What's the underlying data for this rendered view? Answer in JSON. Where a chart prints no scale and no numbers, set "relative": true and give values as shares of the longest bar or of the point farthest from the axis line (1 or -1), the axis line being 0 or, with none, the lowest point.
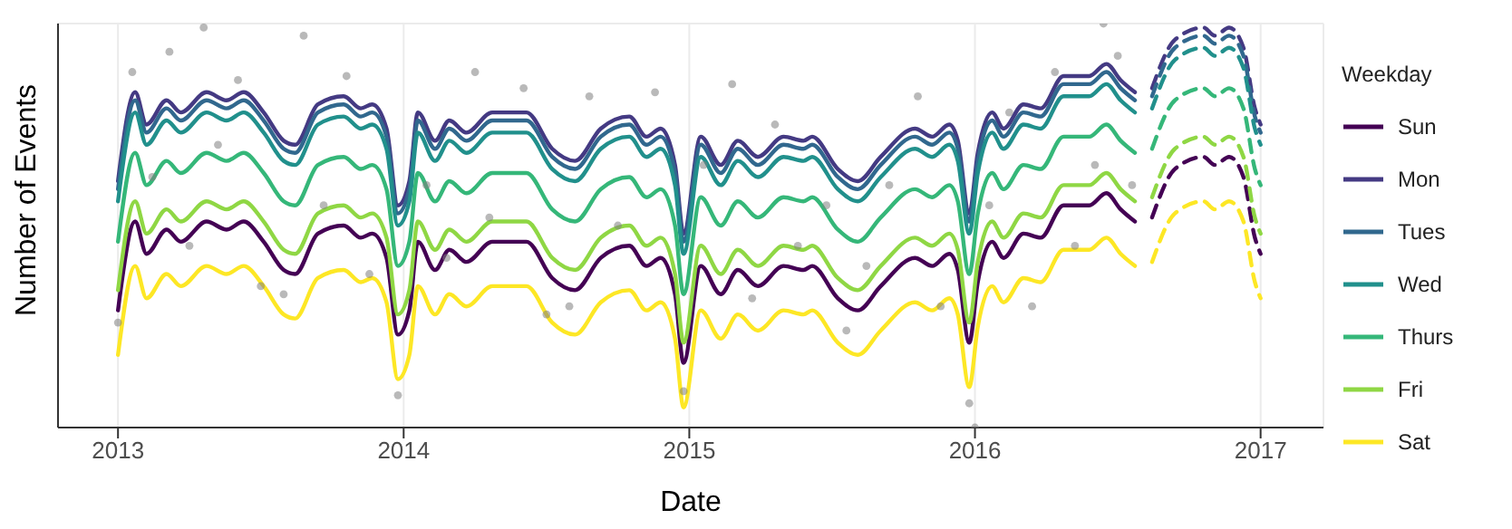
{
  "chart_data": {
    "type": "line",
    "xlabel": "Date",
    "ylabel": "Number of Events",
    "legend_title": "Weekday",
    "legend": "right",
    "grid": true,
    "relative": true,
    "xlim": [
      2012.79,
      2017.22
    ],
    "xticks": [
      2013,
      2014,
      2015,
      2016,
      2017
    ],
    "x": [
      2013.0,
      2013.06,
      2013.1,
      2013.17,
      2013.22,
      2013.31,
      2013.38,
      2013.44,
      2013.51,
      2013.58,
      2013.62,
      2013.7,
      2013.79,
      2013.85,
      2013.89,
      2013.94,
      2013.98,
      2014.02,
      2014.05,
      2014.11,
      2014.16,
      2014.22,
      2014.31,
      2014.37,
      2014.43,
      2014.52,
      2014.6,
      2014.69,
      2014.79,
      2014.85,
      2014.9,
      2014.95,
      2014.98,
      2015.04,
      2015.11,
      2015.17,
      2015.24,
      2015.33,
      2015.4,
      2015.43,
      2015.52,
      2015.59,
      2015.67,
      2015.79,
      2015.85,
      2015.91,
      2015.94,
      2015.98,
      2016.01,
      2016.06,
      2016.1,
      2016.17,
      2016.23,
      2016.31,
      2016.4,
      2016.46,
      2016.51,
      2016.56
    ],
    "series": [
      {
        "type": "scatter",
        "color": "#7f7f7f",
        "x": [
          2013.0,
          2013.05,
          2013.12,
          2013.18,
          2013.25,
          2013.3,
          2013.35,
          2013.42,
          2013.5,
          2013.58,
          2013.65,
          2013.72,
          2013.8,
          2013.88,
          2013.98,
          2014.08,
          2014.15,
          2014.25,
          2014.3,
          2014.42,
          2014.5,
          2014.58,
          2014.65,
          2014.75,
          2014.88,
          2014.98,
          2015.05,
          2015.15,
          2015.22,
          2015.3,
          2015.38,
          2015.48,
          2015.55,
          2015.62,
          2015.7,
          2015.8,
          2015.88,
          2015.98,
          2016.0,
          2016.05,
          2016.12,
          2016.2,
          2016.28,
          2016.35,
          2016.42,
          2016.45,
          2016.5,
          2016.55
        ],
        "values": [
          0.26,
          0.88,
          0.62,
          0.93,
          0.45,
          0.99,
          0.7,
          0.86,
          0.35,
          0.33,
          0.97,
          0.55,
          0.87,
          0.38,
          0.08,
          0.6,
          0.42,
          0.88,
          0.52,
          0.84,
          0.28,
          0.3,
          0.82,
          0.5,
          0.83,
          0.09,
          0.65,
          0.85,
          0.32,
          0.75,
          0.45,
          0.55,
          0.24,
          0.4,
          0.6,
          0.82,
          0.3,
          0.06,
          0.0,
          0.55,
          0.78,
          0.3,
          0.88,
          0.45,
          0.65,
          1.0,
          0.92,
          0.6
        ]
      },
      {
        "name": "Sun",
        "color": "#440154",
        "values": [
          0.29,
          0.51,
          0.43,
          0.49,
          0.46,
          0.51,
          0.49,
          0.51,
          0.46,
          0.39,
          0.38,
          0.48,
          0.5,
          0.47,
          0.48,
          0.42,
          0.23,
          0.29,
          0.46,
          0.39,
          0.44,
          0.41,
          0.46,
          0.46,
          0.46,
          0.37,
          0.34,
          0.42,
          0.45,
          0.4,
          0.42,
          0.33,
          0.16,
          0.4,
          0.33,
          0.39,
          0.35,
          0.4,
          0.39,
          0.4,
          0.32,
          0.29,
          0.35,
          0.42,
          0.4,
          0.43,
          0.39,
          0.21,
          0.36,
          0.46,
          0.42,
          0.48,
          0.47,
          0.55,
          0.55,
          0.58,
          0.54,
          0.51
        ]
      },
      {
        "name": "Mon",
        "color": "#443a83",
        "values": [
          0.61,
          0.83,
          0.75,
          0.81,
          0.78,
          0.83,
          0.81,
          0.83,
          0.78,
          0.71,
          0.7,
          0.8,
          0.82,
          0.79,
          0.8,
          0.74,
          0.55,
          0.61,
          0.78,
          0.71,
          0.76,
          0.73,
          0.78,
          0.78,
          0.78,
          0.69,
          0.66,
          0.74,
          0.77,
          0.72,
          0.74,
          0.65,
          0.48,
          0.72,
          0.65,
          0.71,
          0.67,
          0.72,
          0.71,
          0.72,
          0.64,
          0.61,
          0.67,
          0.74,
          0.72,
          0.75,
          0.71,
          0.53,
          0.68,
          0.78,
          0.74,
          0.8,
          0.79,
          0.87,
          0.87,
          0.9,
          0.86,
          0.83
        ]
      },
      {
        "name": "Tues",
        "color": "#31688e",
        "values": [
          0.59,
          0.81,
          0.73,
          0.79,
          0.76,
          0.81,
          0.79,
          0.81,
          0.76,
          0.69,
          0.68,
          0.78,
          0.8,
          0.77,
          0.78,
          0.72,
          0.53,
          0.59,
          0.76,
          0.69,
          0.74,
          0.71,
          0.76,
          0.76,
          0.76,
          0.67,
          0.64,
          0.72,
          0.75,
          0.7,
          0.72,
          0.63,
          0.46,
          0.7,
          0.63,
          0.69,
          0.65,
          0.7,
          0.69,
          0.7,
          0.62,
          0.59,
          0.65,
          0.72,
          0.7,
          0.73,
          0.69,
          0.51,
          0.66,
          0.76,
          0.72,
          0.78,
          0.77,
          0.85,
          0.85,
          0.88,
          0.84,
          0.81
        ]
      },
      {
        "name": "Wed",
        "color": "#21908c",
        "values": [
          0.56,
          0.78,
          0.7,
          0.76,
          0.73,
          0.78,
          0.76,
          0.78,
          0.73,
          0.66,
          0.65,
          0.75,
          0.77,
          0.74,
          0.75,
          0.69,
          0.5,
          0.56,
          0.73,
          0.66,
          0.71,
          0.68,
          0.73,
          0.73,
          0.73,
          0.64,
          0.61,
          0.69,
          0.72,
          0.67,
          0.69,
          0.6,
          0.43,
          0.67,
          0.6,
          0.66,
          0.62,
          0.67,
          0.66,
          0.67,
          0.59,
          0.56,
          0.62,
          0.69,
          0.67,
          0.7,
          0.66,
          0.48,
          0.63,
          0.73,
          0.69,
          0.75,
          0.74,
          0.82,
          0.82,
          0.85,
          0.81,
          0.78
        ]
      },
      {
        "name": "Thurs",
        "color": "#35b779",
        "values": [
          0.46,
          0.68,
          0.6,
          0.66,
          0.63,
          0.68,
          0.66,
          0.68,
          0.63,
          0.56,
          0.55,
          0.65,
          0.67,
          0.64,
          0.65,
          0.59,
          0.4,
          0.46,
          0.63,
          0.56,
          0.61,
          0.58,
          0.63,
          0.63,
          0.63,
          0.54,
          0.51,
          0.59,
          0.62,
          0.57,
          0.59,
          0.5,
          0.33,
          0.57,
          0.5,
          0.56,
          0.52,
          0.57,
          0.56,
          0.57,
          0.49,
          0.46,
          0.52,
          0.59,
          0.57,
          0.6,
          0.56,
          0.38,
          0.53,
          0.63,
          0.59,
          0.65,
          0.64,
          0.72,
          0.72,
          0.75,
          0.71,
          0.68
        ]
      },
      {
        "name": "Fri",
        "color": "#8fd744",
        "values": [
          0.34,
          0.56,
          0.48,
          0.54,
          0.51,
          0.56,
          0.54,
          0.56,
          0.51,
          0.44,
          0.43,
          0.53,
          0.55,
          0.52,
          0.53,
          0.47,
          0.28,
          0.34,
          0.51,
          0.44,
          0.49,
          0.46,
          0.51,
          0.51,
          0.51,
          0.42,
          0.39,
          0.47,
          0.5,
          0.45,
          0.47,
          0.38,
          0.21,
          0.45,
          0.38,
          0.44,
          0.4,
          0.45,
          0.44,
          0.45,
          0.37,
          0.34,
          0.4,
          0.47,
          0.45,
          0.48,
          0.44,
          0.26,
          0.41,
          0.51,
          0.47,
          0.53,
          0.52,
          0.6,
          0.6,
          0.63,
          0.59,
          0.56
        ]
      },
      {
        "name": "Sat",
        "color": "#fde725",
        "values": [
          0.18,
          0.4,
          0.32,
          0.38,
          0.35,
          0.4,
          0.38,
          0.4,
          0.35,
          0.28,
          0.27,
          0.37,
          0.39,
          0.36,
          0.37,
          0.31,
          0.12,
          0.18,
          0.35,
          0.28,
          0.33,
          0.3,
          0.35,
          0.35,
          0.35,
          0.26,
          0.23,
          0.31,
          0.34,
          0.29,
          0.31,
          0.22,
          0.05,
          0.29,
          0.22,
          0.28,
          0.24,
          0.29,
          0.28,
          0.29,
          0.21,
          0.18,
          0.24,
          0.31,
          0.29,
          0.32,
          0.28,
          0.1,
          0.25,
          0.35,
          0.31,
          0.37,
          0.36,
          0.44,
          0.44,
          0.47,
          0.43,
          0.4
        ]
      },
      {
        "color": "#440154",
        "line_style": "dashed",
        "x": [
          2016.62,
          2016.7,
          2016.8,
          2016.84,
          2016.89,
          2016.94,
          2016.98,
          2017.0
        ],
        "values": [
          0.52,
          0.64,
          0.67,
          0.65,
          0.67,
          0.62,
          0.47,
          0.43
        ]
      },
      {
        "color": "#443a83",
        "line_style": "dashed",
        "x": [
          2016.62,
          2016.7,
          2016.8,
          2016.84,
          2016.89,
          2016.94,
          2016.98,
          2017.0
        ],
        "values": [
          0.84,
          0.96,
          0.99,
          0.97,
          0.99,
          0.94,
          0.79,
          0.75
        ]
      },
      {
        "color": "#31688e",
        "line_style": "dashed",
        "x": [
          2016.62,
          2016.7,
          2016.8,
          2016.84,
          2016.89,
          2016.94,
          2016.98,
          2017.0
        ],
        "values": [
          0.82,
          0.94,
          0.97,
          0.95,
          0.97,
          0.92,
          0.77,
          0.73
        ]
      },
      {
        "color": "#21908c",
        "line_style": "dashed",
        "x": [
          2016.62,
          2016.7,
          2016.8,
          2016.84,
          2016.89,
          2016.94,
          2016.98,
          2017.0
        ],
        "values": [
          0.79,
          0.91,
          0.94,
          0.92,
          0.94,
          0.89,
          0.74,
          0.7
        ]
      },
      {
        "color": "#35b779",
        "line_style": "dashed",
        "x": [
          2016.62,
          2016.7,
          2016.8,
          2016.84,
          2016.89,
          2016.94,
          2016.98,
          2017.0
        ],
        "values": [
          0.69,
          0.81,
          0.84,
          0.82,
          0.84,
          0.79,
          0.64,
          0.6
        ]
      },
      {
        "color": "#8fd744",
        "line_style": "dashed",
        "x": [
          2016.62,
          2016.7,
          2016.8,
          2016.84,
          2016.89,
          2016.94,
          2016.98,
          2017.0
        ],
        "values": [
          0.57,
          0.69,
          0.72,
          0.7,
          0.72,
          0.67,
          0.52,
          0.48
        ]
      },
      {
        "color": "#fde725",
        "line_style": "dashed",
        "x": [
          2016.62,
          2016.7,
          2016.8,
          2016.84,
          2016.89,
          2016.94,
          2016.98,
          2017.0
        ],
        "values": [
          0.41,
          0.53,
          0.56,
          0.54,
          0.56,
          0.51,
          0.36,
          0.32
        ]
      }
    ]
  }
}
